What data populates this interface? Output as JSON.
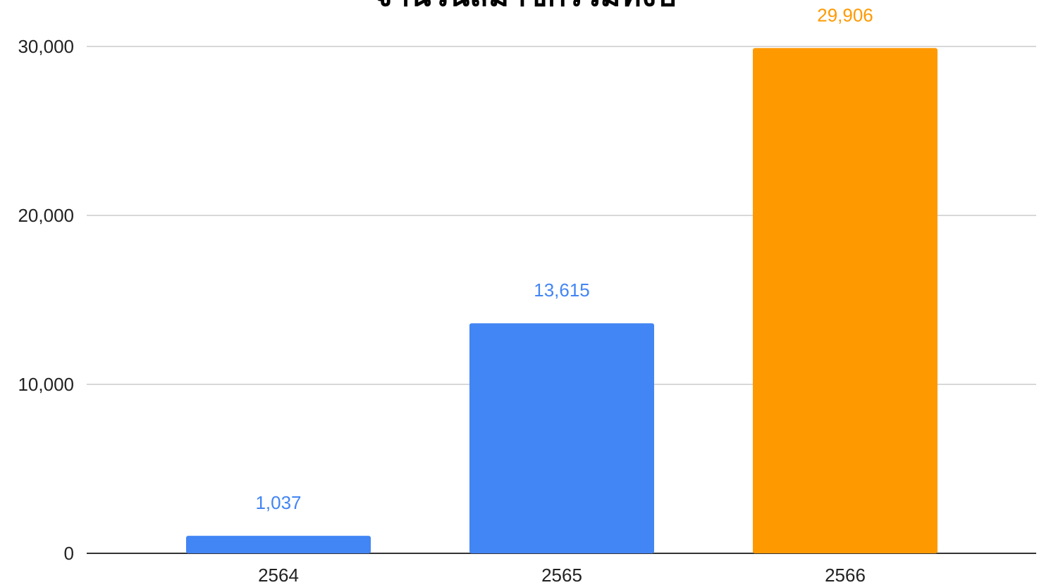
{
  "chart_data": {
    "type": "bar",
    "title": "จำนวนสมาชิกรวมทั้งปี",
    "categories": [
      "2564",
      "2565",
      "2566"
    ],
    "values": [
      1037,
      13615,
      29906
    ],
    "value_labels": [
      "1,037",
      "13,615",
      "29,906"
    ],
    "colors": [
      "#4285f4",
      "#4285f4",
      "#ff9900"
    ],
    "ylim": [
      0,
      30000
    ],
    "yticks": [
      0,
      {
        "value": 10000,
        "label": "10,000"
      },
      {
        "value": 20000,
        "label": "20,000"
      },
      {
        "value": 30000,
        "label": "30,000"
      }
    ],
    "grid": true
  }
}
